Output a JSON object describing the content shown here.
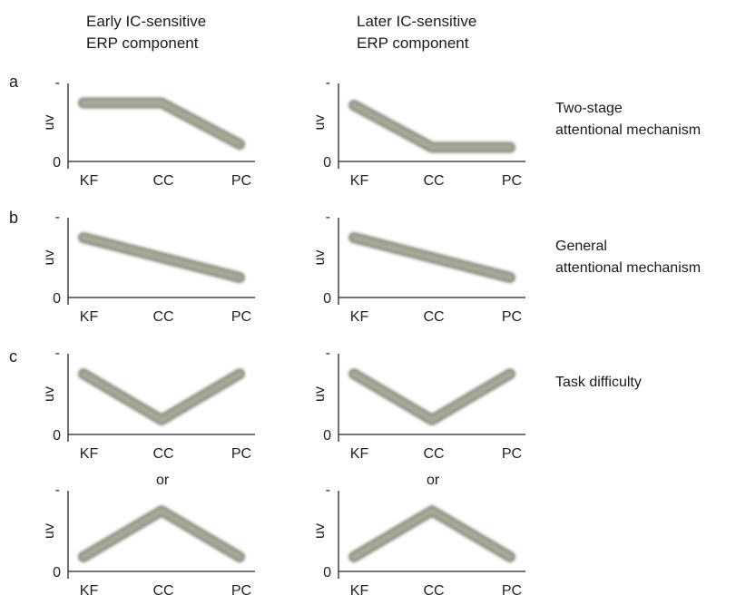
{
  "columns": [
    {
      "line1": "Early IC-sensitive",
      "line2": "ERP component"
    },
    {
      "line1": "Later IC-sensitive",
      "line2": "ERP component"
    }
  ],
  "rows": [
    {
      "letter": "a",
      "label_line1": "Two-stage",
      "label_line2": "attentional mechanism"
    },
    {
      "letter": "b",
      "label_line1": "General",
      "label_line2": "attentional mechanism"
    },
    {
      "letter": "c",
      "label_line1": "Task difficulty",
      "label_line2": ""
    }
  ],
  "or_text": "or",
  "axis": {
    "ylabel": "uv",
    "ytick_top": "-",
    "ytick_zero": "0",
    "xticks": [
      "KF",
      "CC",
      "PC"
    ]
  },
  "line_color": "#a8a89a",
  "panels": [
    {
      "name": "a-early",
      "levels": [
        0.75,
        0.75,
        0.22
      ]
    },
    {
      "name": "a-later",
      "levels": [
        0.72,
        0.18,
        0.18
      ]
    },
    {
      "name": "b-early",
      "levels": [
        0.75,
        0.5,
        0.25
      ]
    },
    {
      "name": "b-later",
      "levels": [
        0.75,
        0.5,
        0.25
      ]
    },
    {
      "name": "c1-early",
      "levels": [
        0.75,
        0.18,
        0.75
      ]
    },
    {
      "name": "c1-later",
      "levels": [
        0.75,
        0.18,
        0.75
      ]
    },
    {
      "name": "c2-early",
      "levels": [
        0.18,
        0.75,
        0.18
      ]
    },
    {
      "name": "c2-later",
      "levels": [
        0.18,
        0.75,
        0.18
      ]
    }
  ]
}
